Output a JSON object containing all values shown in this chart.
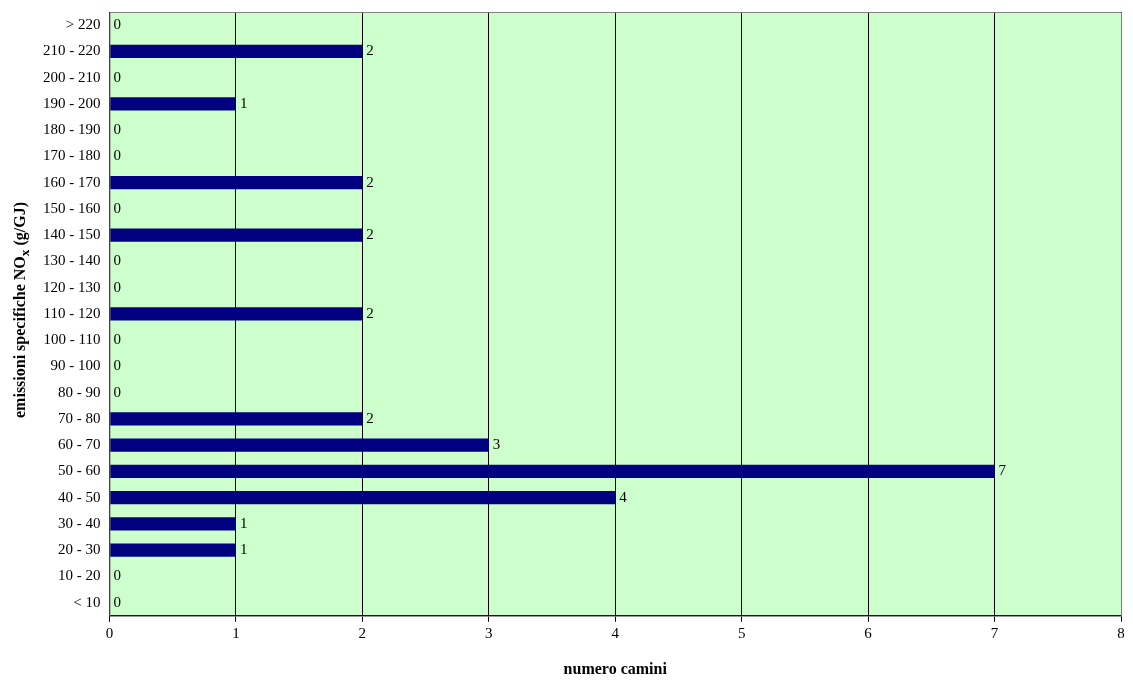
{
  "chart_data": {
    "type": "bar",
    "orientation": "horizontal",
    "xlabel": "numero camini",
    "ylabel": "emissioni specifiche NO$_{x}$ (g/GJ)",
    "categories": [
      "> 220",
      "210 - 220",
      "200 - 210",
      "190 - 200",
      "180 - 190",
      "170 - 180",
      "160 - 170",
      "150 - 160",
      "140 - 150",
      "130 - 140",
      "120 - 130",
      "110 - 120",
      "100 - 110",
      "90 - 100",
      "80 - 90",
      "70 - 80",
      "60 - 70",
      "50 - 60",
      "40 - 50",
      "30 - 40",
      "20 - 30",
      "10 - 20",
      "< 10"
    ],
    "values": [
      0,
      2,
      0,
      1,
      0,
      0,
      2,
      0,
      2,
      0,
      0,
      2,
      0,
      0,
      0,
      2,
      3,
      7,
      4,
      1,
      1,
      0,
      0
    ],
    "color": "#000080",
    "xlim": [
      0,
      8
    ],
    "xticks": [
      0,
      1,
      2,
      3,
      4,
      5,
      6,
      7,
      8
    ],
    "grid": "x",
    "data_labels": true,
    "legend": false
  }
}
